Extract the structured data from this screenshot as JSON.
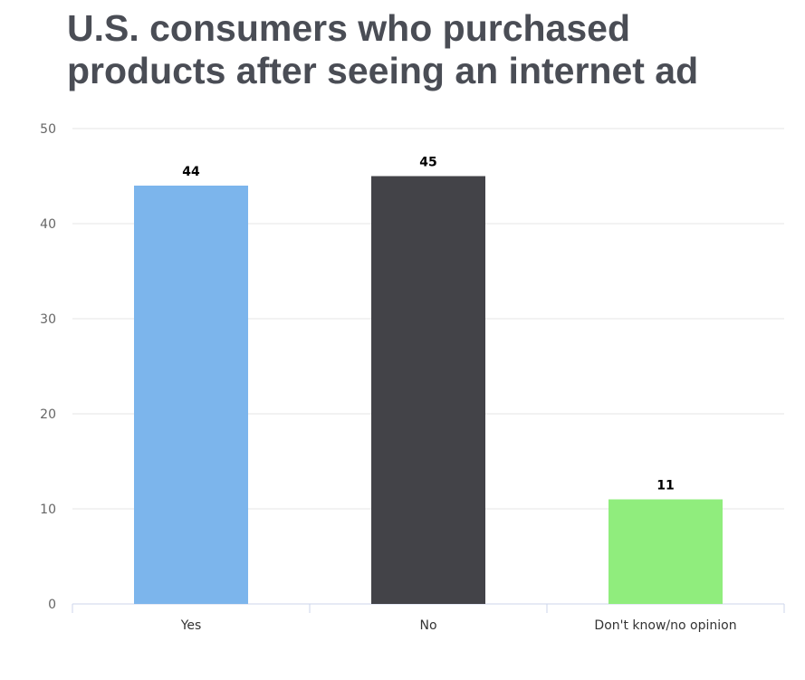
{
  "chart_data": {
    "type": "bar",
    "title": "U.S. consumers who purchased products after seeing an internet ad",
    "title_lines": [
      "U.S. consumers who purchased",
      "products after seeing an internet ad"
    ],
    "categories": [
      "Yes",
      "No",
      "Don't know/no opinion"
    ],
    "values": [
      44,
      45,
      11
    ],
    "data_labels": [
      "44",
      "45",
      "11"
    ],
    "colors": [
      "#7cb5ec",
      "#434348",
      "#90ed7d"
    ],
    "ylim": [
      0,
      50
    ],
    "yticks": [
      0,
      10,
      20,
      30,
      40,
      50
    ],
    "xlabel": "",
    "ylabel": "",
    "grid": true,
    "legend": "none"
  }
}
